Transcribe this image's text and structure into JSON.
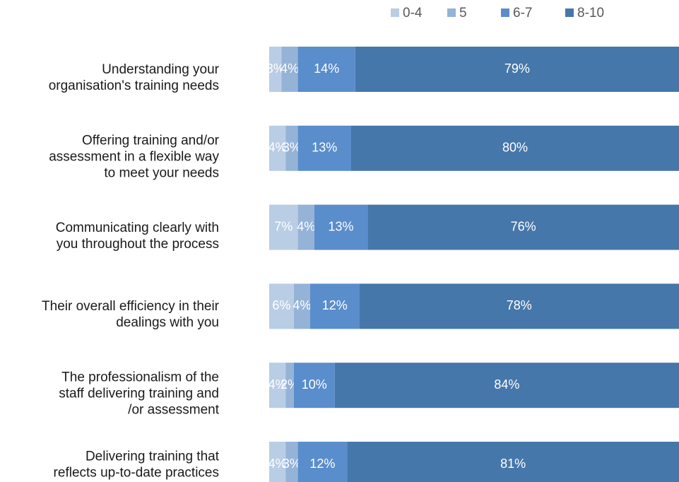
{
  "chart_data": {
    "type": "stacked-bar-horizontal",
    "categories": [
      "Understanding your\norganisation's training needs",
      "Offering training and/or\nassessment in a flexible way\nto meet your needs",
      "Communicating clearly with\nyou throughout the process",
      "Their overall efficiency in their\ndealings with you",
      "The professionalism of the\nstaff delivering training and\n/or assessment",
      "Delivering training that\nreflects up-to-date practices\nin your industry/sector"
    ],
    "series": [
      {
        "name": "0-4",
        "color": "#b9cde5",
        "values": [
          3,
          4,
          7,
          6,
          4,
          4
        ],
        "value_labels": [
          "3%",
          "4%",
          "7%",
          "6%",
          "4%",
          "4%"
        ]
      },
      {
        "name": "5",
        "color": "#95b3d7",
        "values": [
          4,
          3,
          4,
          4,
          2,
          3
        ],
        "value_labels": [
          "4%",
          "3%",
          "4%",
          "4%",
          "2%",
          "3%"
        ]
      },
      {
        "name": "6-7",
        "color": "#5a8dcb",
        "values": [
          14,
          13,
          13,
          12,
          10,
          12
        ],
        "value_labels": [
          "14%",
          "13%",
          "13%",
          "12%",
          "10%",
          "12%"
        ]
      },
      {
        "name": "8-10",
        "color": "#4677aa",
        "values": [
          79,
          80,
          76,
          78,
          84,
          81
        ],
        "value_labels": [
          "79%",
          "80%",
          "76%",
          "78%",
          "84%",
          "81%"
        ]
      }
    ],
    "xlim": [
      0,
      100
    ],
    "legend": "top"
  }
}
